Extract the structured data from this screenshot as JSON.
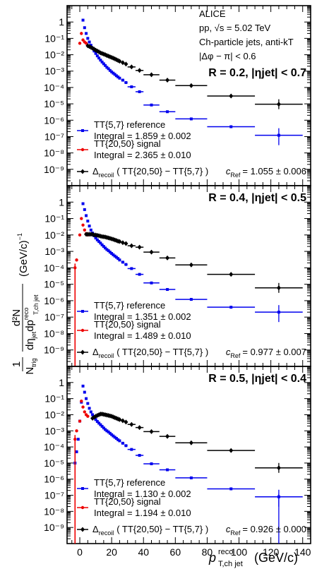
{
  "chart_data": {
    "type": "scatter",
    "x_axis": {
      "range": [
        -8,
        145
      ],
      "tick_values": [
        0,
        20,
        40,
        60,
        80,
        100,
        120,
        140
      ]
    },
    "y_axis": {
      "scale": "log",
      "range": [
        1e-10,
        10
      ],
      "tick_values": [
        1e-09,
        1e-08,
        1e-07,
        1e-06,
        1e-05,
        0.0001,
        0.001,
        0.01,
        0.1,
        1
      ]
    },
    "texts": {
      "ylabel_pre": "1",
      "ylabel_ntrig": "N",
      "ylabel_trig_sub": "trig",
      "ylabel_num": "d²N",
      "ylabel_den": "dη",
      "ylabel_jet_sub": "jet",
      "ylabel_dp": "dp",
      "ylabel_reco_sup": "reco",
      "ylabel_tchjet_sub": "T,ch jet",
      "ylabel_unit": "(GeV/c)",
      "ylabel_unit_exp": "−1",
      "xlabel_p": "p",
      "xlabel_sup": "reco",
      "xlabel_sub": "T,ch jet",
      "xlabel_unit": "(GeV/c)",
      "header": [
        "ALICE",
        "pp, √s = 5.02 TeV",
        "Ch-particle jets, anti-kT",
        "|Δφ − π| < 0.6"
      ],
      "legend_ref": "TT{5,7} reference",
      "legend_sig": "TT{20,50} signal",
      "legend_diff_a": "Δ",
      "legend_diff_sub": "recoil",
      "legend_diff_b": "( TT{20,50} − TT{5,7} )",
      "cref_label": "c",
      "cref_sub": "Ref"
    },
    "tick_labels": {
      "x": [
        "0",
        "20",
        "40",
        "60",
        "80",
        "100",
        "120",
        "140"
      ],
      "y": [
        "10⁻⁹",
        "10⁻⁸",
        "10⁻⁷",
        "10⁻⁶",
        "10⁻⁵",
        "10⁻⁴",
        "10⁻³",
        "10⁻²",
        "10⁻¹",
        "1"
      ]
    },
    "colors": {
      "reference": "#0000ee",
      "signal": "#ee0000",
      "recoil": "#000000"
    },
    "panels": [
      {
        "label": "R = 0.2, |ηjet| < 0.7",
        "integral_ref": "Integral = 1.859 ± 0.002",
        "integral_sig": "Integral = 2.365 ± 0.010",
        "cref": "= 1.055 ± 0.006",
        "series": {
          "reference": [
            [
              2,
              1.3
            ],
            [
              3,
              0.45
            ],
            [
              4,
              0.2
            ],
            [
              5,
              0.1
            ],
            [
              6,
              0.06
            ],
            [
              7,
              0.038
            ],
            [
              8,
              0.025
            ],
            [
              9,
              0.017
            ],
            [
              10,
              0.012
            ],
            [
              11,
              0.0085
            ],
            [
              12,
              0.0063
            ],
            [
              13,
              0.0047
            ],
            [
              14,
              0.0036
            ],
            [
              15,
              0.0028
            ],
            [
              16,
              0.0022
            ],
            [
              17,
              0.0017
            ],
            [
              18,
              0.0014
            ],
            [
              19,
              0.0011
            ],
            [
              20,
              0.0009
            ],
            [
              21,
              0.00075
            ],
            [
              22,
              0.00063
            ],
            [
              23,
              0.00052
            ],
            [
              24,
              0.00044
            ],
            [
              25,
              0.00037
            ],
            [
              27,
              0.00028
            ],
            [
              29,
              0.0002
            ],
            [
              32.5,
              0.00011
            ],
            [
              37.5,
              5.5e-05
            ],
            [
              45,
              8.5e-06
            ],
            [
              55,
              3.3e-06
            ],
            [
              70,
              1.2e-06
            ],
            [
              95,
              4e-07
            ],
            [
              125,
              1.2e-07
            ]
          ],
          "signal": [
            [
              0,
              0.05
            ],
            [
              1,
              0.2
            ],
            [
              2,
              0.08
            ],
            [
              3,
              0.06
            ],
            [
              4,
              0.05
            ]
          ],
          "recoil": [
            [
              5,
              0.035
            ],
            [
              6,
              0.032
            ],
            [
              7,
              0.028
            ],
            [
              8,
              0.025
            ],
            [
              9,
              0.022
            ],
            [
              10,
              0.019
            ],
            [
              11,
              0.017
            ],
            [
              12,
              0.015
            ],
            [
              13,
              0.013
            ],
            [
              14,
              0.012
            ],
            [
              15,
              0.011
            ],
            [
              16,
              0.01
            ],
            [
              17,
              0.009
            ],
            [
              18,
              0.0082
            ],
            [
              19,
              0.0075
            ],
            [
              20,
              0.0068
            ],
            [
              21,
              0.0062
            ],
            [
              22,
              0.0056
            ],
            [
              23,
              0.005
            ],
            [
              24,
              0.0045
            ],
            [
              25,
              0.004
            ],
            [
              27,
              0.0033
            ],
            [
              29,
              0.0027
            ],
            [
              32.5,
              0.0018
            ],
            [
              37.5,
              0.0011
            ],
            [
              45,
              0.0006
            ],
            [
              55,
              0.00028
            ],
            [
              70,
              0.00013
            ],
            [
              95,
              3e-05
            ],
            [
              125,
              9.5e-06
            ]
          ]
        }
      },
      {
        "label": "R = 0.4, |ηjet| < 0.5",
        "integral_ref": "Integral = 1.351 ± 0.002",
        "integral_sig": "Integral = 1.489 ± 0.010",
        "cref": "= 0.977 ± 0.007",
        "series": {
          "reference": [
            [
              2,
              0.8
            ],
            [
              3,
              0.35
            ],
            [
              4,
              0.15
            ],
            [
              5,
              0.07
            ],
            [
              6,
              0.035
            ],
            [
              7,
              0.02
            ],
            [
              8,
              0.013
            ],
            [
              9,
              0.009
            ],
            [
              10,
              0.0065
            ],
            [
              11,
              0.005
            ],
            [
              12,
              0.004
            ],
            [
              13,
              0.0032
            ],
            [
              14,
              0.0025
            ],
            [
              15,
              0.002
            ],
            [
              16,
              0.0016
            ],
            [
              17,
              0.0013
            ],
            [
              18,
              0.0011
            ],
            [
              19,
              0.0009
            ],
            [
              20,
              0.00075
            ],
            [
              21,
              0.00062
            ],
            [
              22,
              0.00052
            ],
            [
              23,
              0.00044
            ],
            [
              24,
              0.00037
            ],
            [
              25,
              0.0003
            ],
            [
              27,
              0.00022
            ],
            [
              29,
              0.00016
            ],
            [
              32.5,
              9e-05
            ],
            [
              37.5,
              4e-05
            ],
            [
              45,
              1.2e-05
            ],
            [
              55,
              4.8e-06
            ],
            [
              70,
              1.2e-06
            ],
            [
              95,
              4e-07
            ],
            [
              125,
              2e-07
            ]
          ],
          "signal": [
            [
              -3,
              0.0001
            ],
            [
              -2,
              0.0003
            ],
            [
              0,
              0.01
            ],
            [
              1,
              0.1
            ],
            [
              2,
              0.04
            ],
            [
              3,
              0.02
            ],
            [
              4,
              0.012
            ],
            [
              5,
              0.01
            ]
          ],
          "recoil": [
            [
              4,
              0.011
            ],
            [
              5,
              0.011
            ],
            [
              6,
              0.011
            ],
            [
              7,
              0.011
            ],
            [
              8,
              0.011
            ],
            [
              9,
              0.01
            ],
            [
              10,
              0.01
            ],
            [
              11,
              0.0095
            ],
            [
              12,
              0.009
            ],
            [
              13,
              0.0085
            ],
            [
              14,
              0.008
            ],
            [
              15,
              0.0078
            ],
            [
              16,
              0.0075
            ],
            [
              17,
              0.007
            ],
            [
              18,
              0.0066
            ],
            [
              19,
              0.0062
            ],
            [
              20,
              0.0058
            ],
            [
              21,
              0.0054
            ],
            [
              22,
              0.005
            ],
            [
              23,
              0.0046
            ],
            [
              24,
              0.0042
            ],
            [
              25,
              0.004
            ],
            [
              27,
              0.0034
            ],
            [
              29,
              0.003
            ],
            [
              32.5,
              0.0022
            ],
            [
              37.5,
              0.0018
            ],
            [
              45,
              0.0009
            ],
            [
              55,
              0.0004
            ],
            [
              70,
              0.00015
            ],
            [
              95,
              4e-05
            ],
            [
              125,
              6e-06
            ]
          ]
        }
      },
      {
        "label": "R = 0.5, |ηjet| < 0.4",
        "integral_ref": "Integral = 1.130 ± 0.002",
        "integral_sig": "Integral = 1.194 ± 0.010",
        "cref": "= 0.926 ± 0.000",
        "series": {
          "reference": [
            [
              -3,
              1e-05
            ],
            [
              -2,
              5e-05
            ],
            [
              -1,
              0.0003
            ],
            [
              0,
              0.004
            ],
            [
              1,
              0.06
            ],
            [
              2,
              0.6
            ],
            [
              3,
              0.25
            ],
            [
              4,
              0.1
            ],
            [
              5,
              0.05
            ],
            [
              6,
              0.025
            ],
            [
              7,
              0.015
            ],
            [
              8,
              0.01
            ],
            [
              9,
              0.007
            ],
            [
              10,
              0.005
            ],
            [
              11,
              0.0038
            ],
            [
              12,
              0.003
            ],
            [
              13,
              0.0024
            ],
            [
              14,
              0.0019
            ],
            [
              15,
              0.0015
            ],
            [
              16,
              0.0012
            ],
            [
              17,
              0.001
            ],
            [
              18,
              0.00085
            ],
            [
              19,
              0.0007
            ],
            [
              20,
              0.00058
            ],
            [
              21,
              0.00048
            ],
            [
              22,
              0.0004
            ],
            [
              23,
              0.00034
            ],
            [
              24,
              0.00028
            ],
            [
              25,
              0.00024
            ],
            [
              27,
              0.00017
            ],
            [
              29,
              0.00012
            ],
            [
              32.5,
              7e-05
            ],
            [
              37.5,
              3e-05
            ],
            [
              45,
              9e-06
            ],
            [
              55,
              3.8e-06
            ],
            [
              70,
              1.2e-06
            ],
            [
              95,
              2.5e-07
            ],
            [
              125,
              8e-08
            ]
          ],
          "signal": [
            [
              -3,
              0.0003
            ],
            [
              -2,
              0.001
            ],
            [
              0,
              0.004
            ],
            [
              1,
              0.07
            ],
            [
              2,
              0.03
            ],
            [
              3,
              0.015
            ],
            [
              4,
              0.01
            ],
            [
              5,
              0.008
            ]
          ],
          "recoil": [
            [
              8,
              0.006
            ],
            [
              9,
              0.007
            ],
            [
              10,
              0.008
            ],
            [
              11,
              0.009
            ],
            [
              12,
              0.01
            ],
            [
              13,
              0.011
            ],
            [
              14,
              0.011
            ],
            [
              15,
              0.0105
            ],
            [
              16,
              0.01
            ],
            [
              17,
              0.0095
            ],
            [
              18,
              0.009
            ],
            [
              19,
              0.0085
            ],
            [
              20,
              0.008
            ],
            [
              21,
              0.0073
            ],
            [
              22,
              0.0066
            ],
            [
              23,
              0.006
            ],
            [
              24,
              0.0054
            ],
            [
              25,
              0.005
            ],
            [
              27,
              0.0042
            ],
            [
              29,
              0.0035
            ],
            [
              32.5,
              0.0025
            ],
            [
              37.5,
              0.0016
            ],
            [
              45,
              0.0009
            ],
            [
              55,
              0.00045
            ],
            [
              70,
              0.00018
            ],
            [
              95,
              6e-05
            ],
            [
              125,
              5e-06
            ]
          ]
        }
      }
    ]
  }
}
